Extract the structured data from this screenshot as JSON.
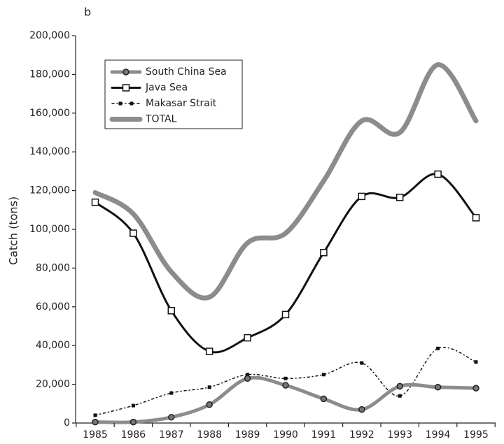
{
  "chart_data": {
    "type": "line",
    "panel_label": "b",
    "y_label": "Catch (tons)",
    "categories": [
      "1985",
      "1986",
      "1987",
      "1988",
      "1989",
      "1990",
      "1991",
      "1992",
      "1993",
      "1994",
      "1995"
    ],
    "ylim": [
      0,
      200000
    ],
    "yticks": [
      0,
      {
        "value": 20000,
        "label": "20,000"
      },
      {
        "value": 40000,
        "label": "40,000"
      },
      {
        "value": 60000,
        "label": "60,000"
      },
      {
        "value": 80000,
        "label": "80,000"
      },
      {
        "value": 100000,
        "label": "100,000"
      },
      {
        "value": 120000,
        "label": "120,000"
      },
      {
        "value": 140000,
        "label": "140,000"
      },
      {
        "value": 160000,
        "label": "160,000"
      },
      {
        "value": 180000,
        "label": "180,000"
      },
      {
        "value": 200000,
        "label": "200,000"
      }
    ],
    "legend": "upper left",
    "series": [
      {
        "name": "South China Sea",
        "color": "#8c8c8c",
        "width": 5,
        "marker": "circle",
        "dashed": false,
        "values": [
          500,
          500,
          3000,
          9500,
          23000,
          19500,
          12500,
          7000,
          19000,
          18500,
          18000
        ]
      },
      {
        "name": "Java Sea",
        "color": "#111111",
        "width": 3,
        "marker": "square",
        "dashed": false,
        "values": [
          114000,
          98000,
          58000,
          37000,
          44000,
          56000,
          88000,
          117000,
          116500,
          128500,
          106000
        ]
      },
      {
        "name": "Makasar Strait",
        "color": "#111111",
        "width": 1.5,
        "marker": "dot",
        "dashed": true,
        "values": [
          4000,
          9000,
          15500,
          18500,
          25000,
          23000,
          25000,
          31000,
          14000,
          38500,
          31500
        ]
      },
      {
        "name": "TOTAL",
        "color": "#8c8c8c",
        "width": 7,
        "marker": "none",
        "dashed": false,
        "values": [
          119000,
          108000,
          78000,
          65000,
          93000,
          98000,
          125000,
          156000,
          150000,
          185000,
          156000
        ]
      }
    ]
  }
}
